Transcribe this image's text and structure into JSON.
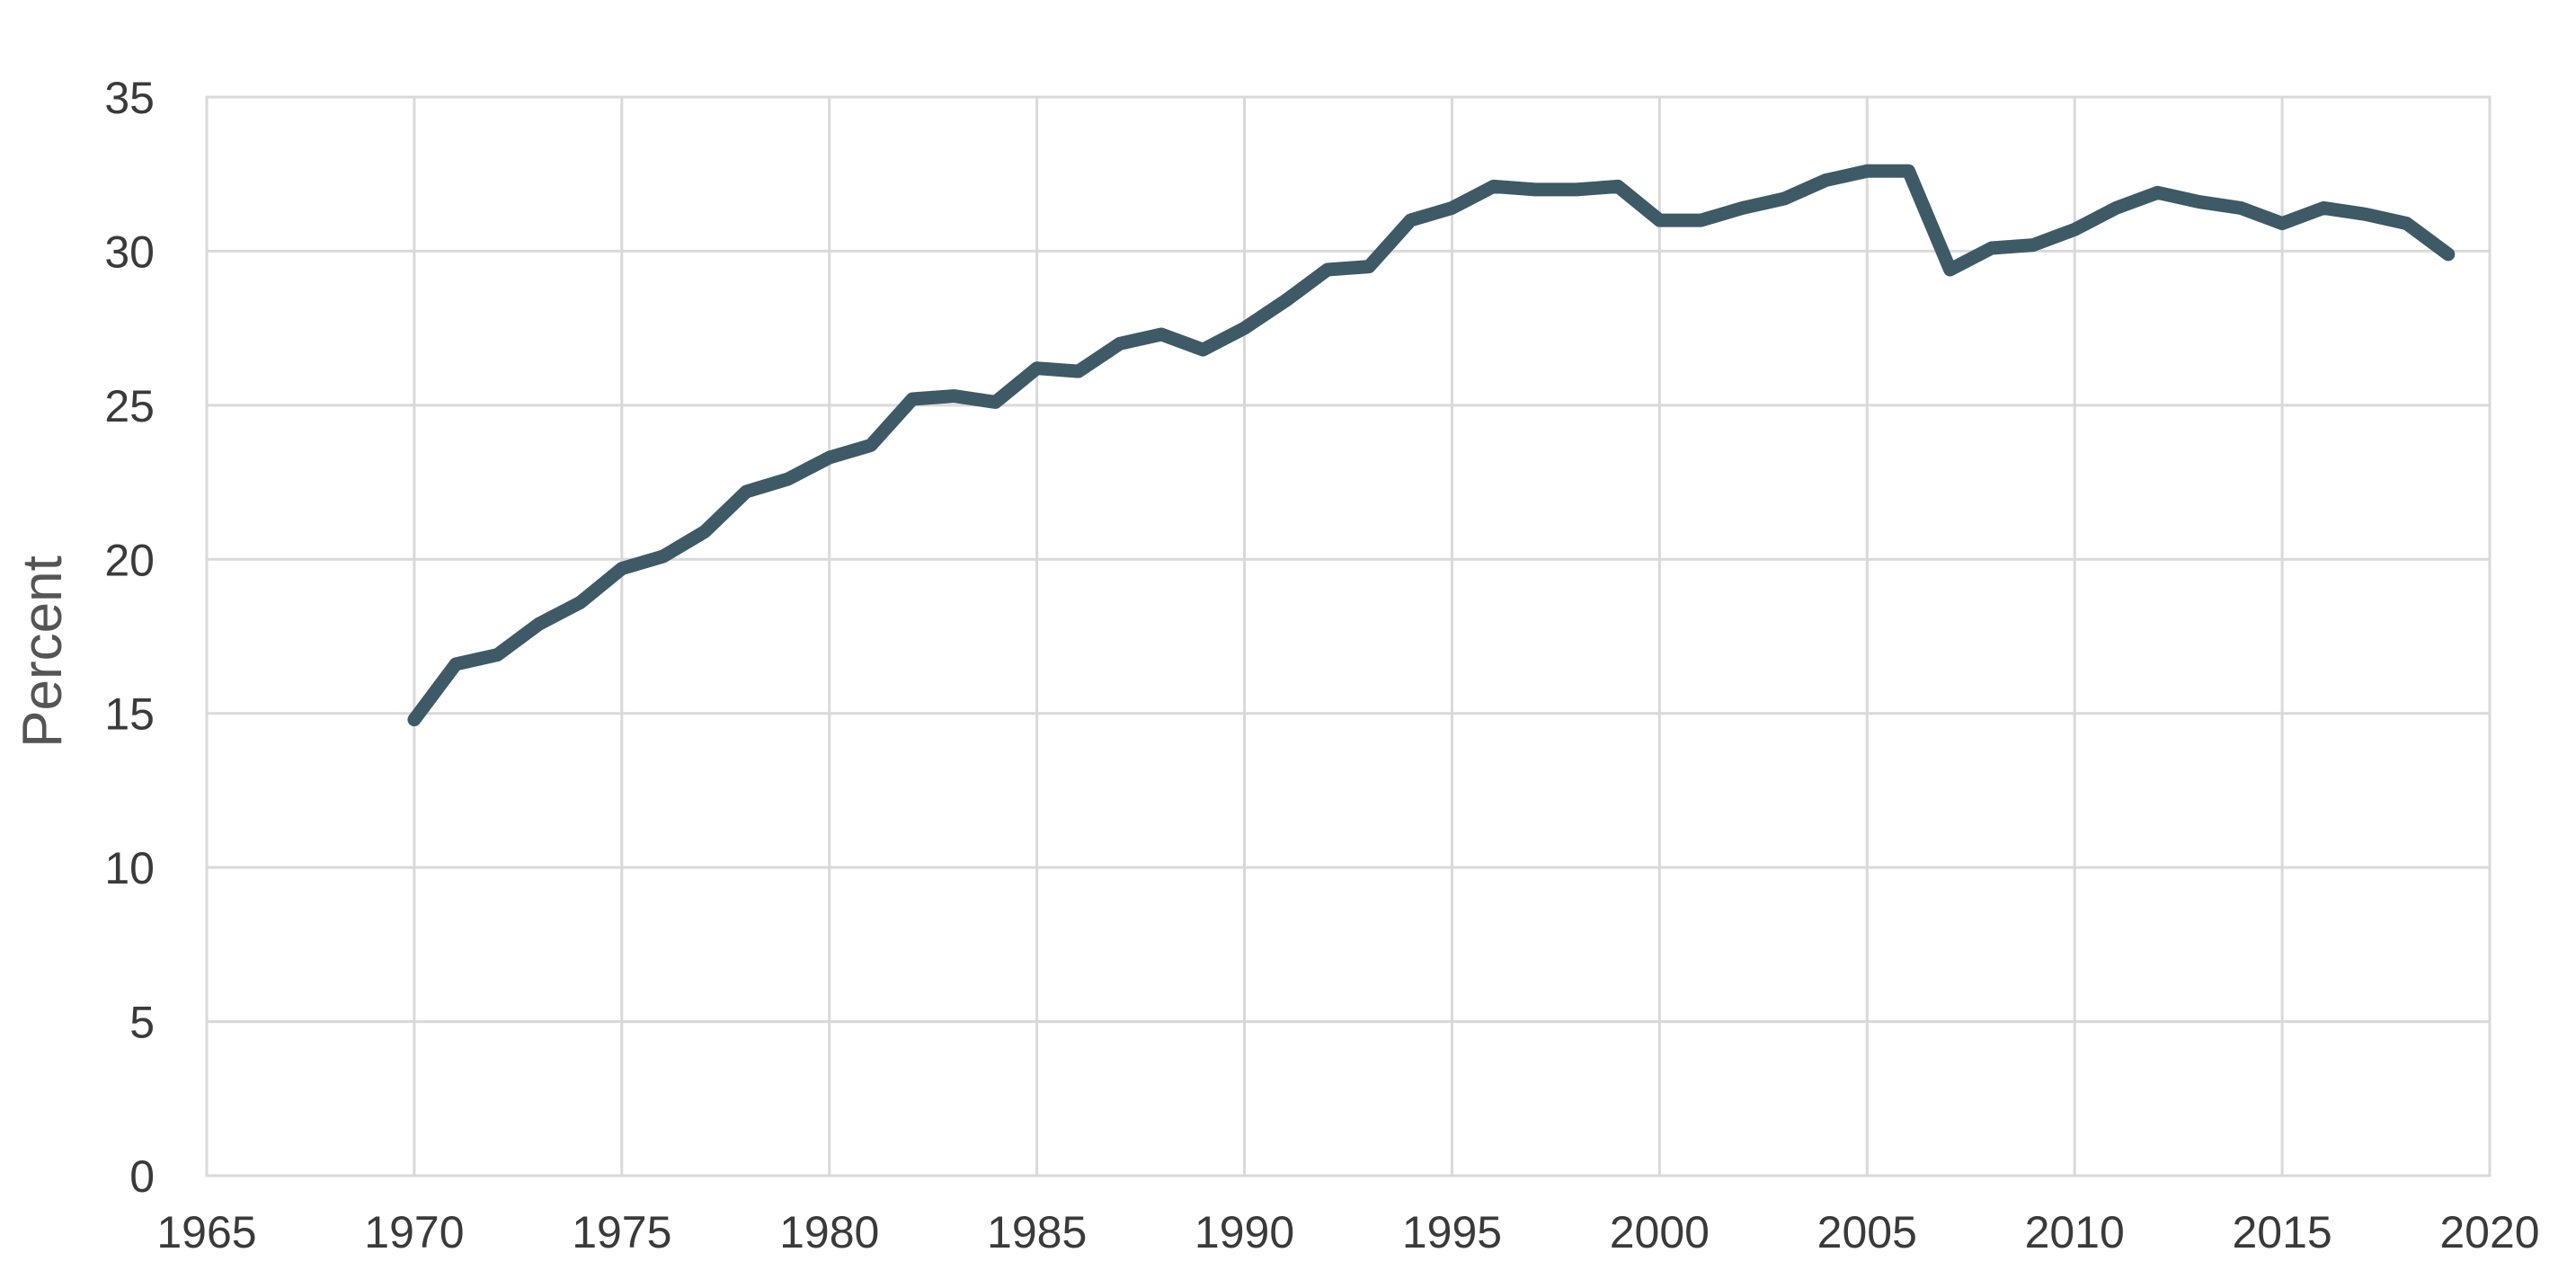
{
  "chart_data": {
    "type": "line",
    "title": "",
    "xlabel": "",
    "ylabel": "Percent",
    "xlim": [
      1965,
      2020
    ],
    "ylim": [
      0,
      35
    ],
    "x_ticks": [
      "1965",
      "1970",
      "1975",
      "1980",
      "1985",
      "1990",
      "1995",
      "2000",
      "2005",
      "2010",
      "2015",
      "2020"
    ],
    "y_ticks": [
      "0",
      "5",
      "10",
      "15",
      "20",
      "25",
      "30",
      "35"
    ],
    "grid": true,
    "legend": "none",
    "series": [
      {
        "color": "#3d5a66",
        "x": [
          1970,
          1971,
          1972,
          1973,
          1974,
          1975,
          1976,
          1977,
          1978,
          1979,
          1980,
          1981,
          1982,
          1983,
          1984,
          1985,
          1986,
          1987,
          1988,
          1989,
          1990,
          1991,
          1992,
          1993,
          1994,
          1995,
          1996,
          1997,
          1998,
          1999,
          2000,
          2001,
          2002,
          2003,
          2004,
          2005,
          2006,
          2007,
          2008,
          2009,
          2010,
          2011,
          2012,
          2013,
          2014,
          2015,
          2016,
          2017,
          2018,
          2019
        ],
        "y": [
          14.8,
          16.6,
          16.9,
          17.9,
          18.6,
          19.7,
          20.1,
          20.9,
          22.2,
          22.6,
          23.3,
          23.7,
          25.2,
          25.3,
          25.1,
          26.2,
          26.1,
          27.0,
          27.3,
          26.8,
          27.5,
          28.4,
          29.4,
          29.5,
          31.0,
          31.4,
          32.1,
          32.0,
          32.0,
          32.1,
          31.0,
          31.0,
          31.4,
          31.7,
          32.3,
          32.6,
          32.6,
          29.4,
          30.1,
          30.2,
          30.7,
          31.4,
          31.9,
          31.6,
          31.4,
          30.9,
          31.4,
          31.2,
          30.9,
          29.9
        ]
      }
    ]
  }
}
